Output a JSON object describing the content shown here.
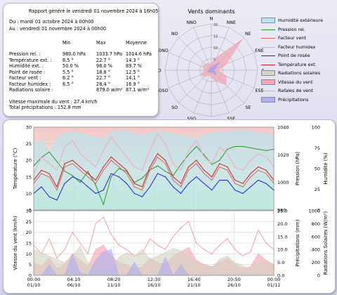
{
  "report": {
    "title": "Rapport généré le vendredi 01 novembre 2024 à 16h05",
    "period_from": "Du : mardi 01 octobre 2024 à 00h00",
    "period_to": "Au : vendredi 01 novembre 2024 à 00h00",
    "col_min": "Min",
    "col_max": "Max",
    "col_avg": "Moyenne",
    "rows": [
      {
        "label": "Pression rel. :",
        "min": "980.0 hPa",
        "max": "1033.7 hPa",
        "avg": "1014.6 hPa"
      },
      {
        "label": "Température ext. :",
        "min": "6.5 °",
        "max": "22.7 °",
        "avg": "14.3 °"
      },
      {
        "label": "Humidité ext. :",
        "min": "50.0 %",
        "max": "98.0 %",
        "avg": "89.7 %"
      },
      {
        "label": "Point de rosée :",
        "min": "5.5 °",
        "max": "18.8 °",
        "avg": "12.5 °"
      },
      {
        "label": "Facteur vent :",
        "min": "6.2 °",
        "max": "22.7 °",
        "avg": "14.1 °"
      },
      {
        "label": "Facteur humidex :",
        "min": "6.5 °",
        "max": "28.4 °",
        "avg": "16.9 °"
      },
      {
        "label": "Radiations solaire :",
        "min": "",
        "max": "879.0 w/m²",
        "avg": "87.1 w/m²"
      }
    ],
    "wind_max": "Vitesse maximale du vent : 27.4 km/h",
    "total_precip": "Total précipitations : 152.8 mm"
  },
  "rose": {
    "title": "Vents dominants",
    "directions": [
      "N",
      "NNE",
      "NE",
      "ENE",
      "E",
      "ESE",
      "SE",
      "SSE",
      "S",
      "SSO",
      "SO",
      "OSO",
      "O",
      "ONO",
      "NO",
      "NNO"
    ],
    "ring_labels": [
      "5",
      "10",
      "15",
      "20"
    ],
    "ring_values": [
      5,
      10,
      15,
      20
    ],
    "scale_max": 20,
    "frequency": [
      3,
      6,
      19,
      7,
      3,
      7,
      9,
      5,
      3,
      2,
      4,
      5,
      3,
      4,
      4,
      3
    ],
    "speed": [
      1,
      2,
      5,
      2,
      1,
      2,
      3,
      1,
      1,
      1,
      1,
      2,
      1,
      1,
      1,
      1
    ],
    "freq_color": "#f0a8b4",
    "speed_color": "#a0a0e8"
  },
  "legend": [
    {
      "label": "Humidité extérieure",
      "kind": "area",
      "color": "#b8e4f0"
    },
    {
      "label": "Pression rel.",
      "kind": "line",
      "color": "#2a9a2a"
    },
    {
      "label": "Facteur vent",
      "kind": "line",
      "color": "#e06060"
    },
    {
      "label": "Facteur humidex",
      "kind": "line",
      "color": "#f0a8b8"
    },
    {
      "label": "Point de rosée",
      "kind": "line",
      "color": "#2020d0"
    },
    {
      "label": "Température ext.",
      "kind": "line",
      "color": "#d02020"
    },
    {
      "label": "Radiations solaires",
      "kind": "area",
      "color": "#d4d4c4"
    },
    {
      "label": "Vitesse du vent",
      "kind": "area",
      "color": "#f4a8b0"
    },
    {
      "label": "Rafales de vent",
      "kind": "line",
      "color": "#f0a0a0"
    },
    {
      "label": "Précipitations",
      "kind": "area",
      "color": "#b0b0ec"
    }
  ],
  "chart_data": [
    {
      "type": "line",
      "ylabel": "Température (°C)",
      "ylabel_right1": "Pression (hPa)",
      "ylabel_right2": "Humidité (%)",
      "ylim": [
        5,
        30
      ],
      "yticks": [
        "5",
        "10",
        "15",
        "20",
        "25",
        "30"
      ],
      "ylim_right1": [
        980,
        1040
      ],
      "yticks_right1": [
        "980",
        "1000",
        "1020",
        "1040"
      ],
      "ylim_right2": [
        0,
        100
      ],
      "yticks_right2": [
        "0",
        "25",
        "50",
        "75",
        "100"
      ],
      "xlim": [
        0,
        31
      ],
      "series": [
        {
          "name": "Humidité extérieure",
          "axis": "right2",
          "color": "#b8e4f0",
          "x": [
            0,
            1,
            2,
            3,
            4,
            5,
            6,
            7,
            8,
            9,
            10,
            11,
            12,
            13,
            14,
            15,
            16,
            17,
            18,
            19,
            20,
            21,
            22,
            23,
            24,
            25,
            26,
            27,
            28,
            29,
            30,
            31
          ],
          "y": [
            80,
            85,
            70,
            88,
            92,
            95,
            93,
            90,
            88,
            86,
            94,
            96,
            95,
            92,
            90,
            93,
            95,
            94,
            92,
            90,
            88,
            86,
            91,
            93,
            95,
            94,
            96,
            97,
            95,
            93,
            92,
            90
          ]
        },
        {
          "name": "Pression rel.",
          "axis": "right1",
          "color": "#2a9a2a",
          "x": [
            0,
            1,
            2,
            3,
            4,
            5,
            6,
            7,
            8,
            9,
            10,
            11,
            12,
            13,
            14,
            15,
            16,
            17,
            18,
            19,
            20,
            21,
            22,
            23,
            24,
            25,
            26,
            27,
            28,
            29,
            30,
            31
          ],
          "y": [
            1012,
            1018,
            1022,
            1015,
            1008,
            1005,
            1000,
            1008,
            998,
            984,
            1004,
            1010,
            1008,
            1000,
            1003,
            1009,
            1012,
            1008,
            1005,
            1013,
            1020,
            1026,
            1020,
            1013,
            1016,
            1024,
            1026,
            1026,
            1025,
            1024,
            1023,
            1024
          ]
        },
        {
          "name": "Facteur humidex",
          "axis": "left",
          "color": "#f0a8b8",
          "x": [
            0,
            1,
            2,
            3,
            4,
            5,
            6,
            7,
            8,
            9,
            10,
            11,
            12,
            13,
            14,
            15,
            16,
            17,
            18,
            19,
            20,
            21,
            22,
            23,
            24,
            25,
            26,
            27,
            28,
            29,
            30,
            31
          ],
          "y": [
            16,
            21,
            19,
            17,
            24,
            26,
            22,
            20,
            18,
            23,
            27,
            24,
            21,
            18,
            17,
            23,
            28,
            25,
            19,
            17,
            23,
            26,
            21,
            19,
            24,
            22,
            18,
            17,
            20,
            22,
            21,
            18
          ]
        },
        {
          "name": "Température ext.",
          "axis": "left",
          "color": "#d02020",
          "x": [
            0,
            1,
            2,
            3,
            4,
            5,
            6,
            7,
            8,
            9,
            10,
            11,
            12,
            13,
            14,
            15,
            16,
            17,
            18,
            19,
            20,
            21,
            22,
            23,
            24,
            25,
            26,
            27,
            28,
            29,
            30,
            31
          ],
          "y": [
            14,
            17,
            16,
            12,
            19,
            20,
            18,
            16,
            14,
            18,
            21,
            19,
            17,
            13,
            12,
            18,
            22,
            20,
            15,
            13,
            18,
            20,
            17,
            15,
            19,
            18,
            14,
            13,
            16,
            18,
            17,
            14
          ]
        },
        {
          "name": "Facteur vent",
          "axis": "left",
          "color": "#e06060",
          "x": [
            0,
            1,
            2,
            3,
            4,
            5,
            6,
            7,
            8,
            9,
            10,
            11,
            12,
            13,
            14,
            15,
            16,
            17,
            18,
            19,
            20,
            21,
            22,
            23,
            24,
            25,
            26,
            27,
            28,
            29,
            30,
            31
          ],
          "y": [
            13,
            16,
            15,
            11,
            18,
            19,
            17,
            15,
            13,
            17,
            20,
            18,
            16,
            12,
            11,
            17,
            21,
            19,
            14,
            12,
            17,
            19,
            16,
            14,
            18,
            17,
            13,
            12,
            15,
            17,
            16,
            13
          ]
        },
        {
          "name": "Point de rosée",
          "axis": "left",
          "color": "#2020d0",
          "x": [
            0,
            1,
            2,
            3,
            4,
            5,
            6,
            7,
            8,
            9,
            10,
            11,
            12,
            13,
            14,
            15,
            16,
            17,
            18,
            19,
            20,
            21,
            22,
            23,
            24,
            25,
            26,
            27,
            28,
            29,
            30,
            31
          ],
          "y": [
            10,
            12,
            9,
            8,
            13,
            15,
            14,
            12,
            10,
            11,
            16,
            15,
            13,
            10,
            9,
            12,
            16,
            15,
            12,
            10,
            13,
            15,
            13,
            11,
            14,
            14,
            11,
            10,
            12,
            14,
            13,
            11
          ]
        }
      ]
    },
    {
      "type": "area",
      "ylabel": "Vitesse du vent (km/h)",
      "ylabel_right1": "Précipitations (mm)",
      "ylabel_right2": "Radiations Solaires (W/m²)",
      "ylim": [
        0,
        30
      ],
      "yticks": [
        "0",
        "5",
        "10",
        "15",
        "20",
        "25",
        "30"
      ],
      "ylim_right1": [
        0,
        25
      ],
      "yticks_right1": [
        "0.0",
        "5.0",
        "10.0",
        "15.0",
        "20.0",
        "25.0"
      ],
      "ylim_right2": [
        0,
        1000
      ],
      "yticks_right2": [
        "0",
        "200",
        "400",
        "600",
        "800",
        "1000"
      ],
      "xlim": [
        0,
        31
      ],
      "xticks": [
        {
          "t": "00:00",
          "d": "01/10",
          "x": 0
        },
        {
          "t": "04:10",
          "d": "06/10",
          "x": 5.17
        },
        {
          "t": "08:20",
          "d": "11/10",
          "x": 10.35
        },
        {
          "t": "12:30",
          "d": "16/10",
          "x": 15.52
        },
        {
          "t": "16:40",
          "d": "21/10",
          "x": 20.69
        },
        {
          "t": "20:50",
          "d": "26/10",
          "x": 25.87
        },
        {
          "t": "00:00",
          "d": "01/11",
          "x": 31
        }
      ],
      "series": [
        {
          "name": "Vitesse du vent",
          "axis": "left",
          "color": "#f4a8b0",
          "x": [
            0,
            1,
            2,
            3,
            4,
            5,
            6,
            7,
            8,
            9,
            10,
            11,
            12,
            13,
            14,
            15,
            16,
            17,
            18,
            19,
            20,
            21,
            22,
            23,
            24,
            25,
            26,
            27,
            28,
            29,
            30,
            31
          ],
          "y": [
            6,
            4,
            8,
            3,
            5,
            10,
            7,
            4,
            12,
            14,
            9,
            6,
            5,
            3,
            4,
            8,
            6,
            5,
            9,
            11,
            13,
            7,
            5,
            4,
            6,
            8,
            5,
            3,
            4,
            10,
            7,
            5
          ]
        },
        {
          "name": "Rafales de vent",
          "axis": "left",
          "color": "#f0a0a0",
          "x": [
            0,
            1,
            2,
            3,
            4,
            5,
            6,
            7,
            8,
            9,
            10,
            11,
            12,
            13,
            14,
            15,
            16,
            17,
            18,
            19,
            20,
            21,
            22,
            23,
            24,
            25,
            26,
            27,
            28,
            29,
            30,
            31
          ],
          "y": [
            14,
            10,
            17,
            8,
            12,
            20,
            15,
            10,
            24,
            27,
            19,
            14,
            12,
            9,
            10,
            17,
            14,
            12,
            18,
            22,
            25,
            15,
            12,
            10,
            14,
            17,
            12,
            9,
            11,
            21,
            15,
            12
          ]
        },
        {
          "name": "Radiations solaires",
          "axis": "right2",
          "color": "#d4d4c4",
          "x": [
            0,
            1,
            2,
            3,
            4,
            5,
            6,
            7,
            8,
            9,
            10,
            11,
            12,
            13,
            14,
            15,
            16,
            17,
            18,
            19,
            20,
            21,
            22,
            23,
            24,
            25,
            26,
            27,
            28,
            29,
            30,
            31
          ],
          "y": [
            400,
            350,
            300,
            250,
            200,
            300,
            450,
            200,
            150,
            100,
            120,
            280,
            350,
            300,
            400,
            250,
            300,
            350,
            420,
            380,
            300,
            200,
            150,
            120,
            250,
            300,
            200,
            150,
            100,
            200,
            220,
            150
          ]
        },
        {
          "name": "Précipitations",
          "axis": "right1",
          "color": "#b0b0ec",
          "x": [
            0,
            1,
            2,
            3,
            4,
            5,
            6,
            7,
            8,
            9,
            10,
            11,
            12,
            13,
            14,
            15,
            16,
            17,
            18,
            19,
            20,
            21,
            22,
            23,
            24,
            25,
            26,
            27,
            28,
            29,
            30,
            31
          ],
          "y": [
            0,
            0,
            4,
            0,
            0,
            8,
            1,
            0,
            6,
            9,
            10,
            0,
            0,
            5,
            0,
            0,
            0,
            7,
            0,
            4,
            0,
            0,
            0,
            0,
            0,
            0,
            0,
            0,
            0,
            0,
            0,
            0
          ]
        }
      ]
    }
  ]
}
